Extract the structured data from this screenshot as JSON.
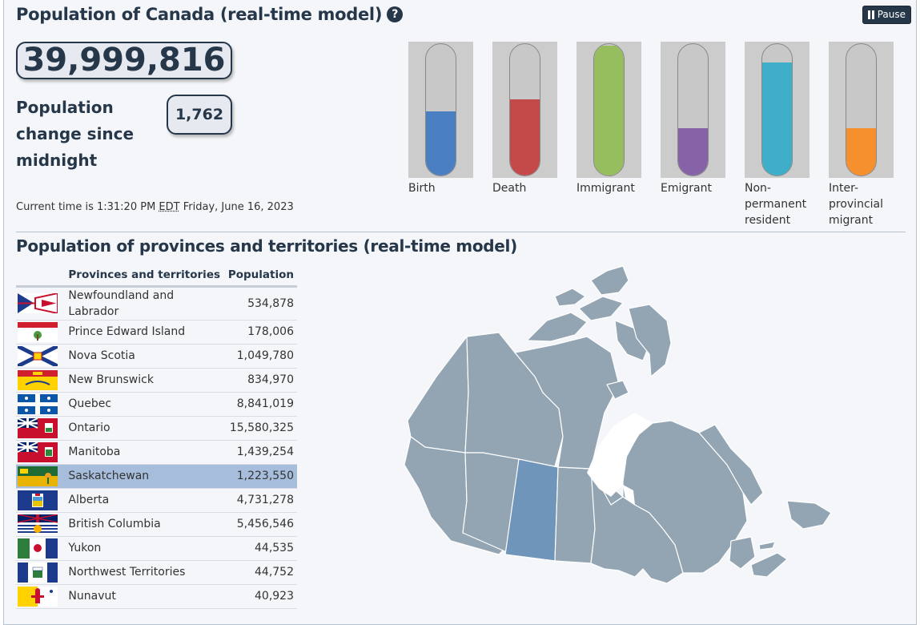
{
  "header": {
    "title": "Population of Canada (real-time model)",
    "help_glyph": "?",
    "pause_label": "Pause"
  },
  "counter": {
    "population": "39,999,816",
    "change_label": "Population change since midnight",
    "change_value": "1,762"
  },
  "time": {
    "prefix": "Current time is 1:31:20 PM",
    "zone": "EDT",
    "date": "Friday, June 16, 2023"
  },
  "gauges": [
    {
      "label": "Birth",
      "level": 0.49,
      "color": "#4a7fc1"
    },
    {
      "label": "Death",
      "level": 0.58,
      "color": "#c44a4a"
    },
    {
      "label": "Immigrant",
      "level": 0.99,
      "color": "#97be5e"
    },
    {
      "label": "Emigrant",
      "level": 0.36,
      "color": "#8563a6"
    },
    {
      "label": "Non-permanent resident",
      "level": 0.86,
      "color": "#3fafc9"
    },
    {
      "label": "Inter-provincial migrant",
      "level": 0.36,
      "color": "#f68f2d"
    }
  ],
  "provinces": {
    "title": "Population of provinces and territories (real-time model)",
    "col_name": "Provinces and territories",
    "col_pop": "Population",
    "rows": [
      {
        "name": "Newfoundland and Labrador",
        "pop": "534,878",
        "flag": "nl"
      },
      {
        "name": "Prince Edward Island",
        "pop": "178,006",
        "flag": "pe"
      },
      {
        "name": "Nova Scotia",
        "pop": "1,049,780",
        "flag": "ns"
      },
      {
        "name": "New Brunswick",
        "pop": "834,970",
        "flag": "nb"
      },
      {
        "name": "Quebec",
        "pop": "8,841,019",
        "flag": "qc"
      },
      {
        "name": "Ontario",
        "pop": "15,580,325",
        "flag": "on"
      },
      {
        "name": "Manitoba",
        "pop": "1,439,254",
        "flag": "mb"
      },
      {
        "name": "Saskatchewan",
        "pop": "1,223,550",
        "flag": "sk",
        "selected": true
      },
      {
        "name": "Alberta",
        "pop": "4,731,278",
        "flag": "ab"
      },
      {
        "name": "British Columbia",
        "pop": "5,456,546",
        "flag": "bc"
      },
      {
        "name": "Yukon",
        "pop": "44,535",
        "flag": "yt"
      },
      {
        "name": "Northwest Territories",
        "pop": "44,752",
        "flag": "nt"
      },
      {
        "name": "Nunavut",
        "pop": "40,923",
        "flag": "nu"
      }
    ]
  },
  "map": {
    "base_color": "#93a5b3",
    "highlight_color": "#6f95bb",
    "highlighted": "Saskatchewan"
  }
}
